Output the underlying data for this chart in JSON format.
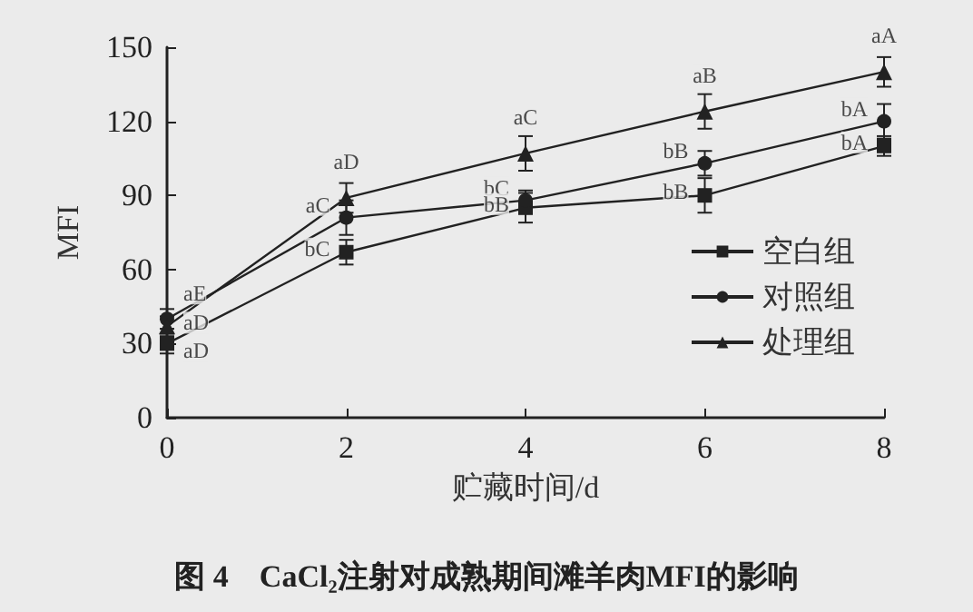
{
  "chart_data": {
    "type": "line",
    "title": "图 4　CaCl₂注射对成熟期间滩羊肉MFI的影响",
    "xlabel": "贮藏时间/d",
    "ylabel": "MFI",
    "x": [
      0,
      2,
      4,
      6,
      8
    ],
    "series": [
      {
        "name": "空白组",
        "color": "#222222",
        "marker": "square",
        "values": [
          30,
          67,
          85,
          90,
          110
        ],
        "errors": [
          4,
          5,
          6,
          7,
          4
        ]
      },
      {
        "name": "对照组",
        "color": "#222222",
        "marker": "circle",
        "values": [
          40,
          81,
          88,
          103,
          120
        ],
        "errors": [
          4,
          7,
          4,
          5,
          7
        ]
      },
      {
        "name": "处理组",
        "color": "#222222",
        "marker": "triangle",
        "values": [
          37,
          89,
          107,
          124,
          140
        ],
        "errors": [
          4,
          6,
          7,
          7,
          6
        ]
      }
    ],
    "xlim": [
      0,
      8
    ],
    "xticks": [
      0,
      2,
      4,
      6,
      8
    ],
    "ylim": [
      0,
      150
    ],
    "yticks": [
      0,
      30,
      60,
      90,
      120,
      150
    ],
    "grid": false,
    "legend": "bottom right",
    "line_style": "solid",
    "annotations": [
      {
        "text": "aE",
        "x": 0,
        "y": 40
      },
      {
        "text": "aD",
        "x": 0,
        "y": 37
      },
      {
        "text": "aD",
        "x": 0,
        "y": 30
      },
      {
        "text": "aD",
        "x": 2,
        "y": 89
      },
      {
        "text": "aC",
        "x": 2,
        "y": 81
      },
      {
        "text": "bC",
        "x": 2,
        "y": 67
      },
      {
        "text": "aC",
        "x": 4,
        "y": 107
      },
      {
        "text": "bC",
        "x": 4,
        "y": 88
      },
      {
        "text": "bB",
        "x": 4,
        "y": 85
      },
      {
        "text": "aB",
        "x": 6,
        "y": 124
      },
      {
        "text": "bB",
        "x": 6,
        "y": 103
      },
      {
        "text": "bB",
        "x": 6,
        "y": 90
      },
      {
        "text": "aA",
        "x": 8,
        "y": 140
      },
      {
        "text": "bA",
        "x": 8,
        "y": 120
      },
      {
        "text": "bA",
        "x": 8,
        "y": 110
      }
    ]
  }
}
